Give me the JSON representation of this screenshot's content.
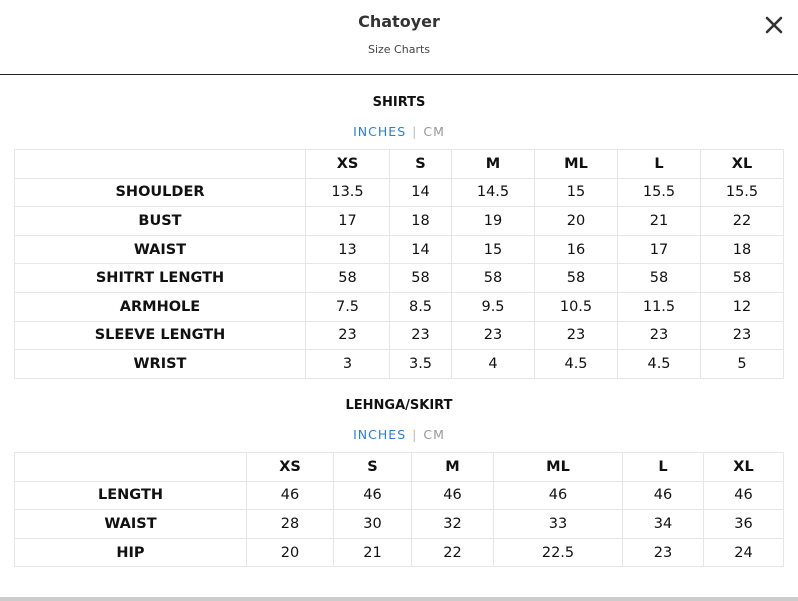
{
  "header": {
    "title": "Chatoyer",
    "subtitle": "Size Charts"
  },
  "sections": [
    {
      "title": "SHIRTS",
      "units": [
        "INCHES",
        "CM"
      ],
      "table": {
        "columns": [
          "XS",
          "S",
          "M",
          "ML",
          "L",
          "XL"
        ],
        "rows": [
          {
            "label": "SHOULDER",
            "values": [
              13.5,
              14,
              14.5,
              15,
              15.5,
              15.5
            ]
          },
          {
            "label": "BUST",
            "values": [
              17,
              18,
              19,
              20,
              21,
              22
            ]
          },
          {
            "label": "WAIST",
            "values": [
              13,
              14,
              15,
              16,
              17,
              18
            ]
          },
          {
            "label": "SHITRT LENGTH",
            "values": [
              58,
              58,
              58,
              58,
              58,
              58
            ]
          },
          {
            "label": "ARMHOLE",
            "values": [
              7.5,
              8.5,
              9.5,
              10.5,
              11.5,
              12
            ]
          },
          {
            "label": "SLEEVE LENGTH",
            "values": [
              23,
              23,
              23,
              23,
              23,
              23
            ]
          },
          {
            "label": "WRIST",
            "values": [
              3,
              3.5,
              4,
              4.5,
              4.5,
              5
            ]
          }
        ]
      }
    },
    {
      "title": "LEHNGA/SKIRT",
      "units": [
        "INCHES",
        "CM"
      ],
      "table": {
        "columns": [
          "XS",
          "S",
          "M",
          "ML",
          "L",
          "XL"
        ],
        "rows": [
          {
            "label": "LENGTH",
            "values": [
              46,
              46,
              46,
              46,
              46,
              46
            ]
          },
          {
            "label": "WAIST",
            "values": [
              28,
              30,
              32,
              33,
              34,
              36
            ]
          },
          {
            "label": "HIP",
            "values": [
              20,
              21,
              22,
              22.5,
              23,
              24
            ]
          }
        ]
      }
    }
  ]
}
